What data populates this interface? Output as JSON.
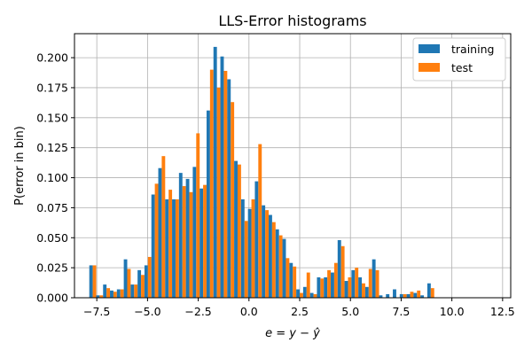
{
  "chart_data": {
    "type": "bar",
    "title": "LLS-Error histograms",
    "xlabel": "e = y − ŷ",
    "ylabel": "P(error in bin)",
    "xlim": [
      -8.6,
      12.9
    ],
    "ylim": [
      0,
      0.22
    ],
    "xticks": [
      -7.5,
      -5.0,
      -2.5,
      0.0,
      2.5,
      5.0,
      7.5,
      10.0,
      12.5
    ],
    "xtick_labels": [
      "−7.5",
      "−5.0",
      "−2.5",
      "0.0",
      "2.5",
      "5.0",
      "7.5",
      "10.0",
      "12.5"
    ],
    "yticks": [
      0.0,
      0.025,
      0.05,
      0.075,
      0.1,
      0.125,
      0.15,
      0.175,
      0.2
    ],
    "ytick_labels": [
      "0.000",
      "0.025",
      "0.050",
      "0.075",
      "0.100",
      "0.125",
      "0.150",
      "0.175",
      "0.200"
    ],
    "grid": true,
    "legend_position": "top-right",
    "bin_width": 0.34,
    "x": [
      -7.7,
      -7.36,
      -7.02,
      -6.68,
      -6.34,
      -6.0,
      -5.66,
      -5.32,
      -4.98,
      -4.64,
      -4.3,
      -3.96,
      -3.62,
      -3.28,
      -2.94,
      -2.6,
      -2.26,
      -1.92,
      -1.58,
      -1.24,
      -0.9,
      -0.56,
      -0.22,
      0.12,
      0.46,
      0.8,
      1.14,
      1.48,
      1.82,
      2.16,
      2.5,
      2.84,
      3.18,
      3.52,
      3.86,
      4.2,
      4.54,
      4.88,
      5.22,
      5.56,
      5.9,
      6.24,
      6.58,
      6.92,
      7.26,
      7.6,
      7.94,
      8.28,
      8.62,
      8.96,
      9.3,
      9.64,
      9.98,
      10.32,
      10.66,
      11.0,
      11.34,
      11.68
    ],
    "series": [
      {
        "name": "training",
        "color": "#1f77b4",
        "values": [
          0.027,
          0.002,
          0.011,
          0.006,
          0.007,
          0.032,
          0.011,
          0.023,
          0.027,
          0.086,
          0.108,
          0.082,
          0.082,
          0.104,
          0.099,
          0.109,
          0.091,
          0.156,
          0.209,
          0.201,
          0.182,
          0.114,
          0.082,
          0.074,
          0.097,
          0.077,
          0.069,
          0.057,
          0.049,
          0.029,
          0.007,
          0.009,
          0.004,
          0.017,
          0.017,
          0.021,
          0.048,
          0.014,
          0.023,
          0.017,
          0.009,
          0.032,
          0.002,
          0.003,
          0.007,
          0.003,
          0.003,
          0.004,
          0.002,
          0.012,
          0.0,
          0.0,
          0.0,
          0.0,
          0.0,
          0.0,
          0.0,
          0.0
        ]
      },
      {
        "name": "test",
        "color": "#ff7f0e",
        "values": [
          0.027,
          0.002,
          0.008,
          0.005,
          0.007,
          0.024,
          0.011,
          0.019,
          0.034,
          0.095,
          0.118,
          0.09,
          0.082,
          0.093,
          0.088,
          0.137,
          0.094,
          0.19,
          0.175,
          0.189,
          0.163,
          0.111,
          0.064,
          0.082,
          0.128,
          0.073,
          0.063,
          0.052,
          0.033,
          0.026,
          0.004,
          0.021,
          0.003,
          0.016,
          0.023,
          0.029,
          0.043,
          0.017,
          0.025,
          0.012,
          0.024,
          0.023,
          0.0,
          0.0,
          0.0,
          0.003,
          0.005,
          0.006,
          0.0,
          0.008,
          0.0,
          0.0,
          0.0,
          0.0,
          0.0,
          0.0,
          0.0,
          0.0
        ]
      }
    ]
  }
}
